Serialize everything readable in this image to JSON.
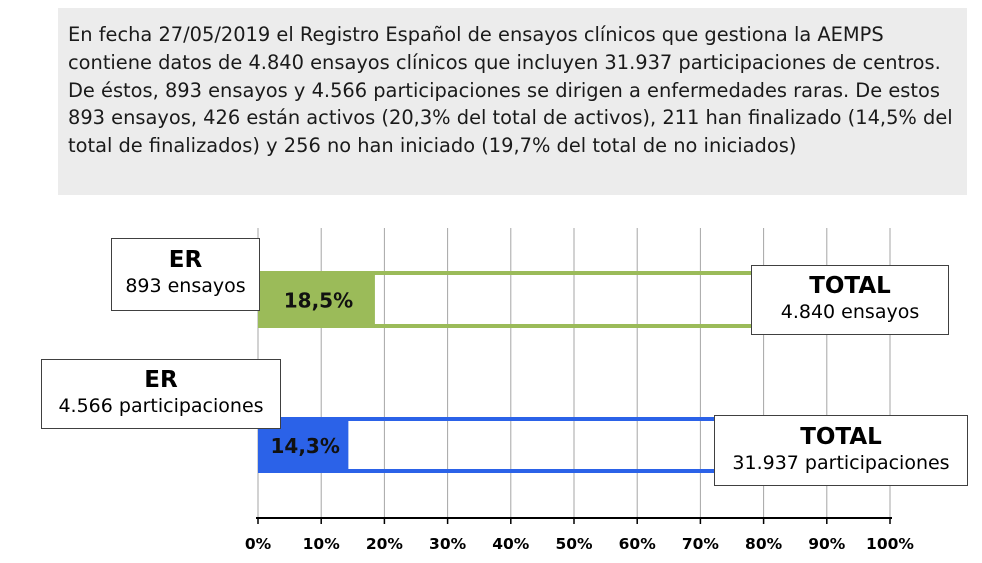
{
  "summary": {
    "text": "En fecha 27/05/2019 el Registro Español de ensayos clínicos que gestiona la AEMPS contiene datos de 4.840 ensayos clínicos que incluyen 31.937 participaciones de centros. De éstos, 893 ensayos y 4.566 participaciones se dirigen a enfermedades raras. De estos 893 ensayos, 426 están activos (20,3% del total de activos), 211 han finalizado (14,5% del total de finalizados) y 256 no han iniciado (19,7% del total de no iniciados)"
  },
  "callouts": {
    "er_trials": {
      "title": "ER",
      "subtitle": "893 ensayos"
    },
    "total_trials": {
      "title": "TOTAL",
      "subtitle": "4.840 ensayos"
    },
    "er_participations": {
      "title": "ER",
      "subtitle": "4.566 participaciones"
    },
    "total_participations": {
      "title": "TOTAL",
      "subtitle": "31.937 participaciones"
    }
  },
  "colors": {
    "green": "#9bbb59",
    "blue": "#2b62e8",
    "grid": "#a6a6a6",
    "axis": "#000000"
  },
  "chart_data": {
    "type": "bar",
    "orientation": "horizontal",
    "categories": [
      "ensayos",
      "participaciones"
    ],
    "values": [
      18.5,
      14.3
    ],
    "total": [
      100,
      100
    ],
    "data_labels": [
      "18,5%",
      "14,3%"
    ],
    "xlim": [
      0,
      100
    ],
    "x_ticks": [
      0,
      10,
      20,
      30,
      40,
      50,
      60,
      70,
      80,
      90,
      100
    ],
    "x_tick_labels": [
      "0%",
      "10%",
      "20%",
      "30%",
      "40%",
      "50%",
      "60%",
      "70%",
      "80%",
      "90%",
      "100%"
    ],
    "grid": true,
    "title": "",
    "xlabel": "",
    "ylabel": ""
  }
}
